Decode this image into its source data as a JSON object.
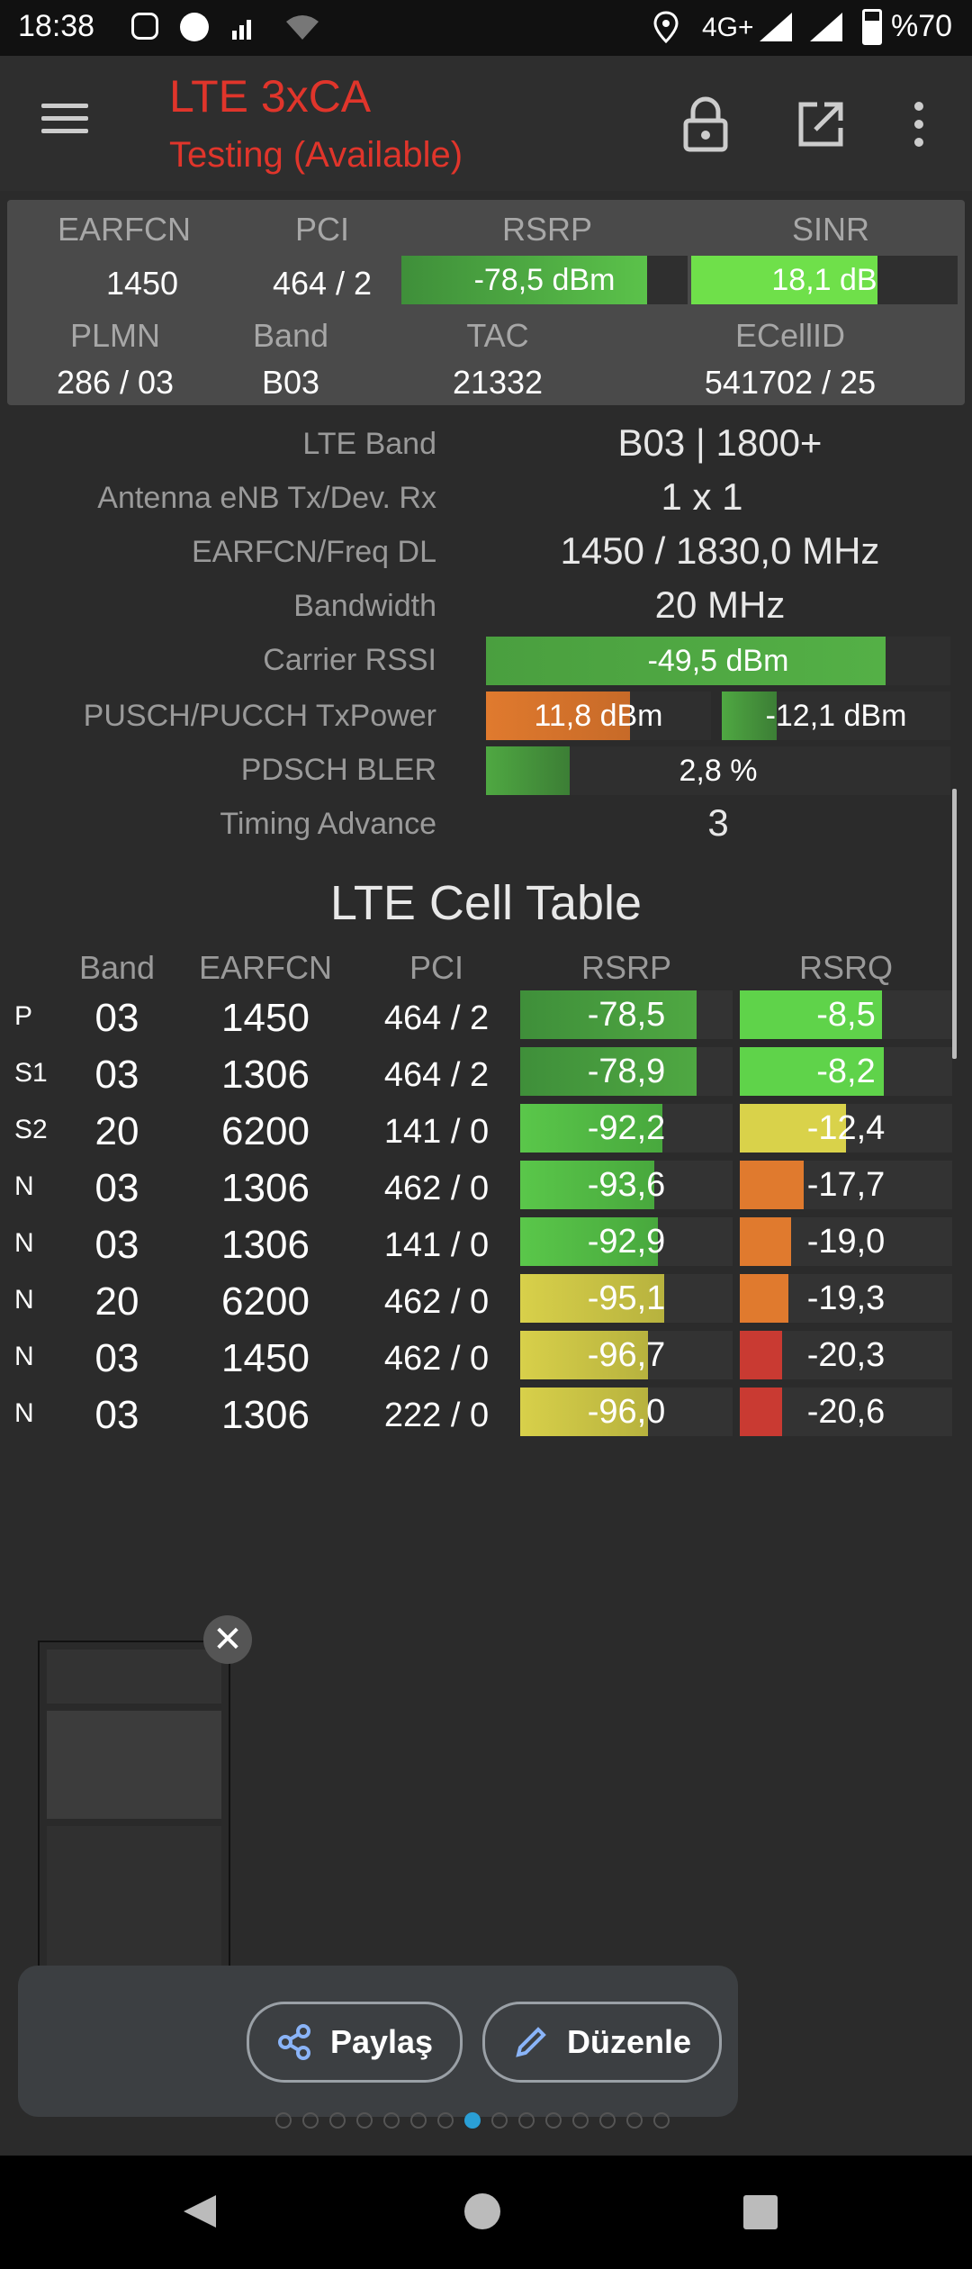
{
  "status_bar": {
    "time": "18:38",
    "network": "4G+",
    "battery": "%70"
  },
  "toolbar": {
    "title": "LTE 3xCA",
    "subtitle": "Testing (Available)"
  },
  "summary": {
    "labels": {
      "earfcn": "EARFCN",
      "pci": "PCI",
      "rsrp": "RSRP",
      "sinr": "SINR",
      "plmn": "PLMN",
      "band": "Band",
      "tac": "TAC",
      "ecellid": "ECellID"
    },
    "earfcn": "1450",
    "pci": "464 / 2",
    "rsrp": {
      "text": "-78,5 dBm",
      "level": 0.86
    },
    "sinr": {
      "text": "18,1 dB",
      "level": 0.7
    },
    "plmn": "286 / 03",
    "band": "B03",
    "tac": "21332",
    "ecellid": "541702 / 25"
  },
  "details": {
    "lte_band": {
      "label": "LTE Band",
      "value": "B03 | 1800+"
    },
    "antenna": {
      "label": "Antenna eNB Tx/Dev. Rx",
      "value": "1 x 1"
    },
    "earfcn_freq": {
      "label": "EARFCN/Freq DL",
      "value": "1450 / 1830,0 MHz"
    },
    "bandwidth": {
      "label": "Bandwidth",
      "value": "20 MHz"
    },
    "rssi": {
      "label": "Carrier RSSI",
      "value": "-49,5 dBm",
      "level": 0.86
    },
    "txpower": {
      "label": "PUSCH/PUCCH TxPower",
      "pusch": "11,8 dBm",
      "pusch_level": 0.64,
      "pucch": "-12,1 dBm",
      "pucch_level": 0.24
    },
    "bler": {
      "label": "PDSCH BLER",
      "value": "2,8 %",
      "level": 0.18
    },
    "timing_advance": {
      "label": "Timing Advance",
      "value": "3"
    }
  },
  "table": {
    "title": "LTE Cell Table",
    "headers": [
      "Band",
      "EARFCN",
      "PCI",
      "RSRP",
      "RSRQ"
    ],
    "rows": [
      {
        "type": "P",
        "band": "03",
        "earfcn": "1450",
        "pci": "464 / 2",
        "rsrp": "-78,5",
        "rsrp_level": 0.83,
        "rsrq": "-8,5",
        "rsrq_level": 0.67,
        "rsrq_color": "#5fd34a"
      },
      {
        "type": "S1",
        "band": "03",
        "earfcn": "1306",
        "pci": "464 / 2",
        "rsrp": "-78,9",
        "rsrp_level": 0.83,
        "rsrq": "-8,2",
        "rsrq_level": 0.68,
        "rsrq_color": "#5fd34a"
      },
      {
        "type": "S2",
        "band": "20",
        "earfcn": "6200",
        "pci": "141 / 0",
        "rsrp": "-92,2",
        "rsrp_level": 0.67,
        "rsrq": "-12,4",
        "rsrq_level": 0.5,
        "rsrq_color": "#d9d24a"
      },
      {
        "type": "N",
        "band": "03",
        "earfcn": "1306",
        "pci": "462 / 0",
        "rsrp": "-93,6",
        "rsrp_level": 0.63,
        "rsrq": "-17,7",
        "rsrq_level": 0.3,
        "rsrq_color": "#e07a2e"
      },
      {
        "type": "N",
        "band": "03",
        "earfcn": "1306",
        "pci": "141 / 0",
        "rsrp": "-92,9",
        "rsrp_level": 0.65,
        "rsrq": "-19,0",
        "rsrq_level": 0.24,
        "rsrq_color": "#e07a2e"
      },
      {
        "type": "N",
        "band": "20",
        "earfcn": "6200",
        "pci": "462 / 0",
        "rsrp": "-95,1",
        "rsrp_level": 0.68,
        "rsrq": "-19,3",
        "rsrq_level": 0.23,
        "rsrq_color": "#e07a2e"
      },
      {
        "type": "N",
        "band": "03",
        "earfcn": "1450",
        "pci": "462 / 0",
        "rsrp": "-96,7",
        "rsrp_level": 0.6,
        "rsrq": "-20,3",
        "rsrq_level": 0.2,
        "rsrq_color": "#c93a32"
      },
      {
        "type": "N",
        "band": "03",
        "earfcn": "1306",
        "pci": "222 / 0",
        "rsrp": "-96,0",
        "rsrp_level": 0.6,
        "rsrq": "-20,6",
        "rsrq_level": 0.2,
        "rsrq_color": "#c93a32"
      }
    ]
  },
  "share": {
    "share_label": "Paylaş",
    "edit_label": "Düzenle"
  },
  "icons": {
    "menu": "menu-icon",
    "lock": "lock-icon",
    "open": "open-external-icon",
    "more": "more-vert-icon",
    "share": "share-icon",
    "edit": "pencil-icon",
    "close": "close-icon"
  }
}
